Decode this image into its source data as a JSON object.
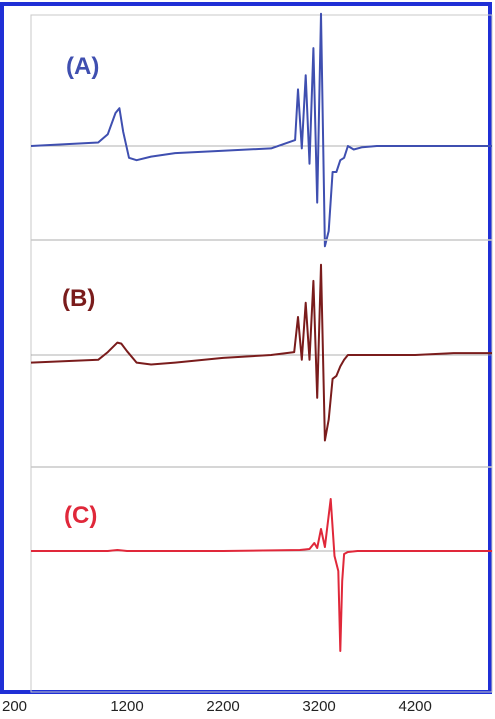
{
  "chart_data": {
    "type": "line",
    "title": "",
    "xlabel": "",
    "ylabel": "",
    "x_ticks": [
      "200",
      "1200",
      "2200",
      "3200",
      "4200"
    ],
    "x_tick_values": [
      200,
      1200,
      2200,
      3200,
      4200
    ],
    "xlim": [
      200,
      5000
    ],
    "ylim": [
      -1,
      1
    ],
    "grid": false,
    "legend": "none",
    "colors": {
      "border": "#1f2fd6",
      "divider": "#c8c8c8",
      "zero_line": "#999999"
    },
    "panels": [
      {
        "label": "(A)",
        "color": "#3f4fb0",
        "x": [
          200,
          900,
          1000,
          1080,
          1120,
          1160,
          1220,
          1300,
          1450,
          1700,
          2200,
          2700,
          2950,
          2980,
          3020,
          3060,
          3100,
          3140,
          3180,
          3220,
          3260,
          3300,
          3340,
          3380,
          3420,
          3460,
          3500,
          3560,
          3650,
          3800,
          4200,
          4600,
          5000
        ],
        "y": [
          0,
          0.03,
          0.1,
          0.28,
          0.32,
          0.12,
          -0.1,
          -0.12,
          -0.09,
          -0.06,
          -0.04,
          -0.02,
          0.05,
          0.48,
          -0.02,
          0.6,
          -0.15,
          0.83,
          -0.48,
          1.12,
          -0.85,
          -0.72,
          -0.22,
          -0.22,
          -0.12,
          -0.1,
          0.0,
          -0.03,
          -0.01,
          0.0,
          0.0,
          0.0,
          0.0
        ]
      },
      {
        "label": "(B)",
        "color": "#7a1c1c",
        "x": [
          200,
          900,
          1000,
          1100,
          1140,
          1200,
          1300,
          1450,
          1700,
          2200,
          2700,
          2940,
          2980,
          3020,
          3060,
          3100,
          3140,
          3180,
          3220,
          3260,
          3300,
          3340,
          3380,
          3420,
          3460,
          3500,
          3560,
          3650,
          3800,
          4200,
          4600,
          5000
        ],
        "y": [
          -0.08,
          -0.05,
          0.03,
          0.13,
          0.12,
          0.04,
          -0.08,
          -0.1,
          -0.08,
          -0.03,
          0.0,
          0.03,
          0.4,
          -0.05,
          0.55,
          -0.05,
          0.78,
          -0.45,
          0.95,
          -0.9,
          -0.68,
          -0.25,
          -0.22,
          -0.12,
          -0.05,
          0.0,
          0.0,
          0.0,
          0.0,
          0.0,
          0.02,
          0.02
        ]
      },
      {
        "label": "(C)",
        "color": "#e0283a",
        "x": [
          200,
          1000,
          1100,
          1200,
          2200,
          3000,
          3100,
          3150,
          3180,
          3220,
          3260,
          3280,
          3320,
          3360,
          3400,
          3420,
          3440,
          3460,
          3500,
          3600,
          3800,
          4200,
          4600,
          5000
        ],
        "y": [
          0,
          0.0,
          0.01,
          0.0,
          0.0,
          0.01,
          0.02,
          0.08,
          0.03,
          0.22,
          0.04,
          0.2,
          0.52,
          -0.05,
          -0.2,
          -1.0,
          -0.3,
          -0.03,
          -0.01,
          0.0,
          0.0,
          0.0,
          0.0,
          0.0
        ]
      }
    ]
  }
}
